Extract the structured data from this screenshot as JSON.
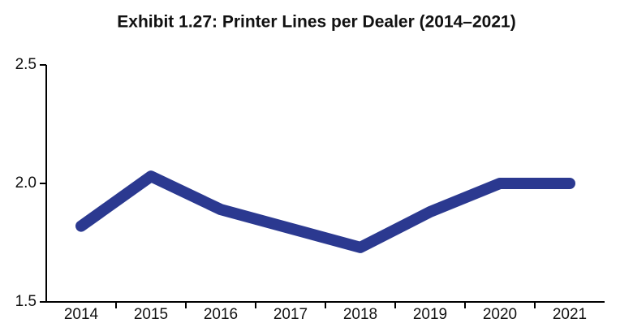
{
  "chart_data": {
    "type": "line",
    "title": "Exhibit 1.27: Printer Lines per Dealer (2014–2021)",
    "categories": [
      "2014",
      "2015",
      "2016",
      "2017",
      "2018",
      "2019",
      "2020",
      "2021"
    ],
    "series": [
      {
        "name": "Printer Lines per Dealer",
        "color": "#2b3990",
        "values": [
          1.82,
          2.03,
          1.89,
          1.81,
          1.73,
          1.88,
          2.0,
          2.0
        ]
      }
    ],
    "ylim": [
      1.5,
      2.5
    ],
    "yticks": [
      1.5,
      {
        "value": 2,
        "label": "2.0"
      },
      2.5
    ],
    "grid": false
  }
}
